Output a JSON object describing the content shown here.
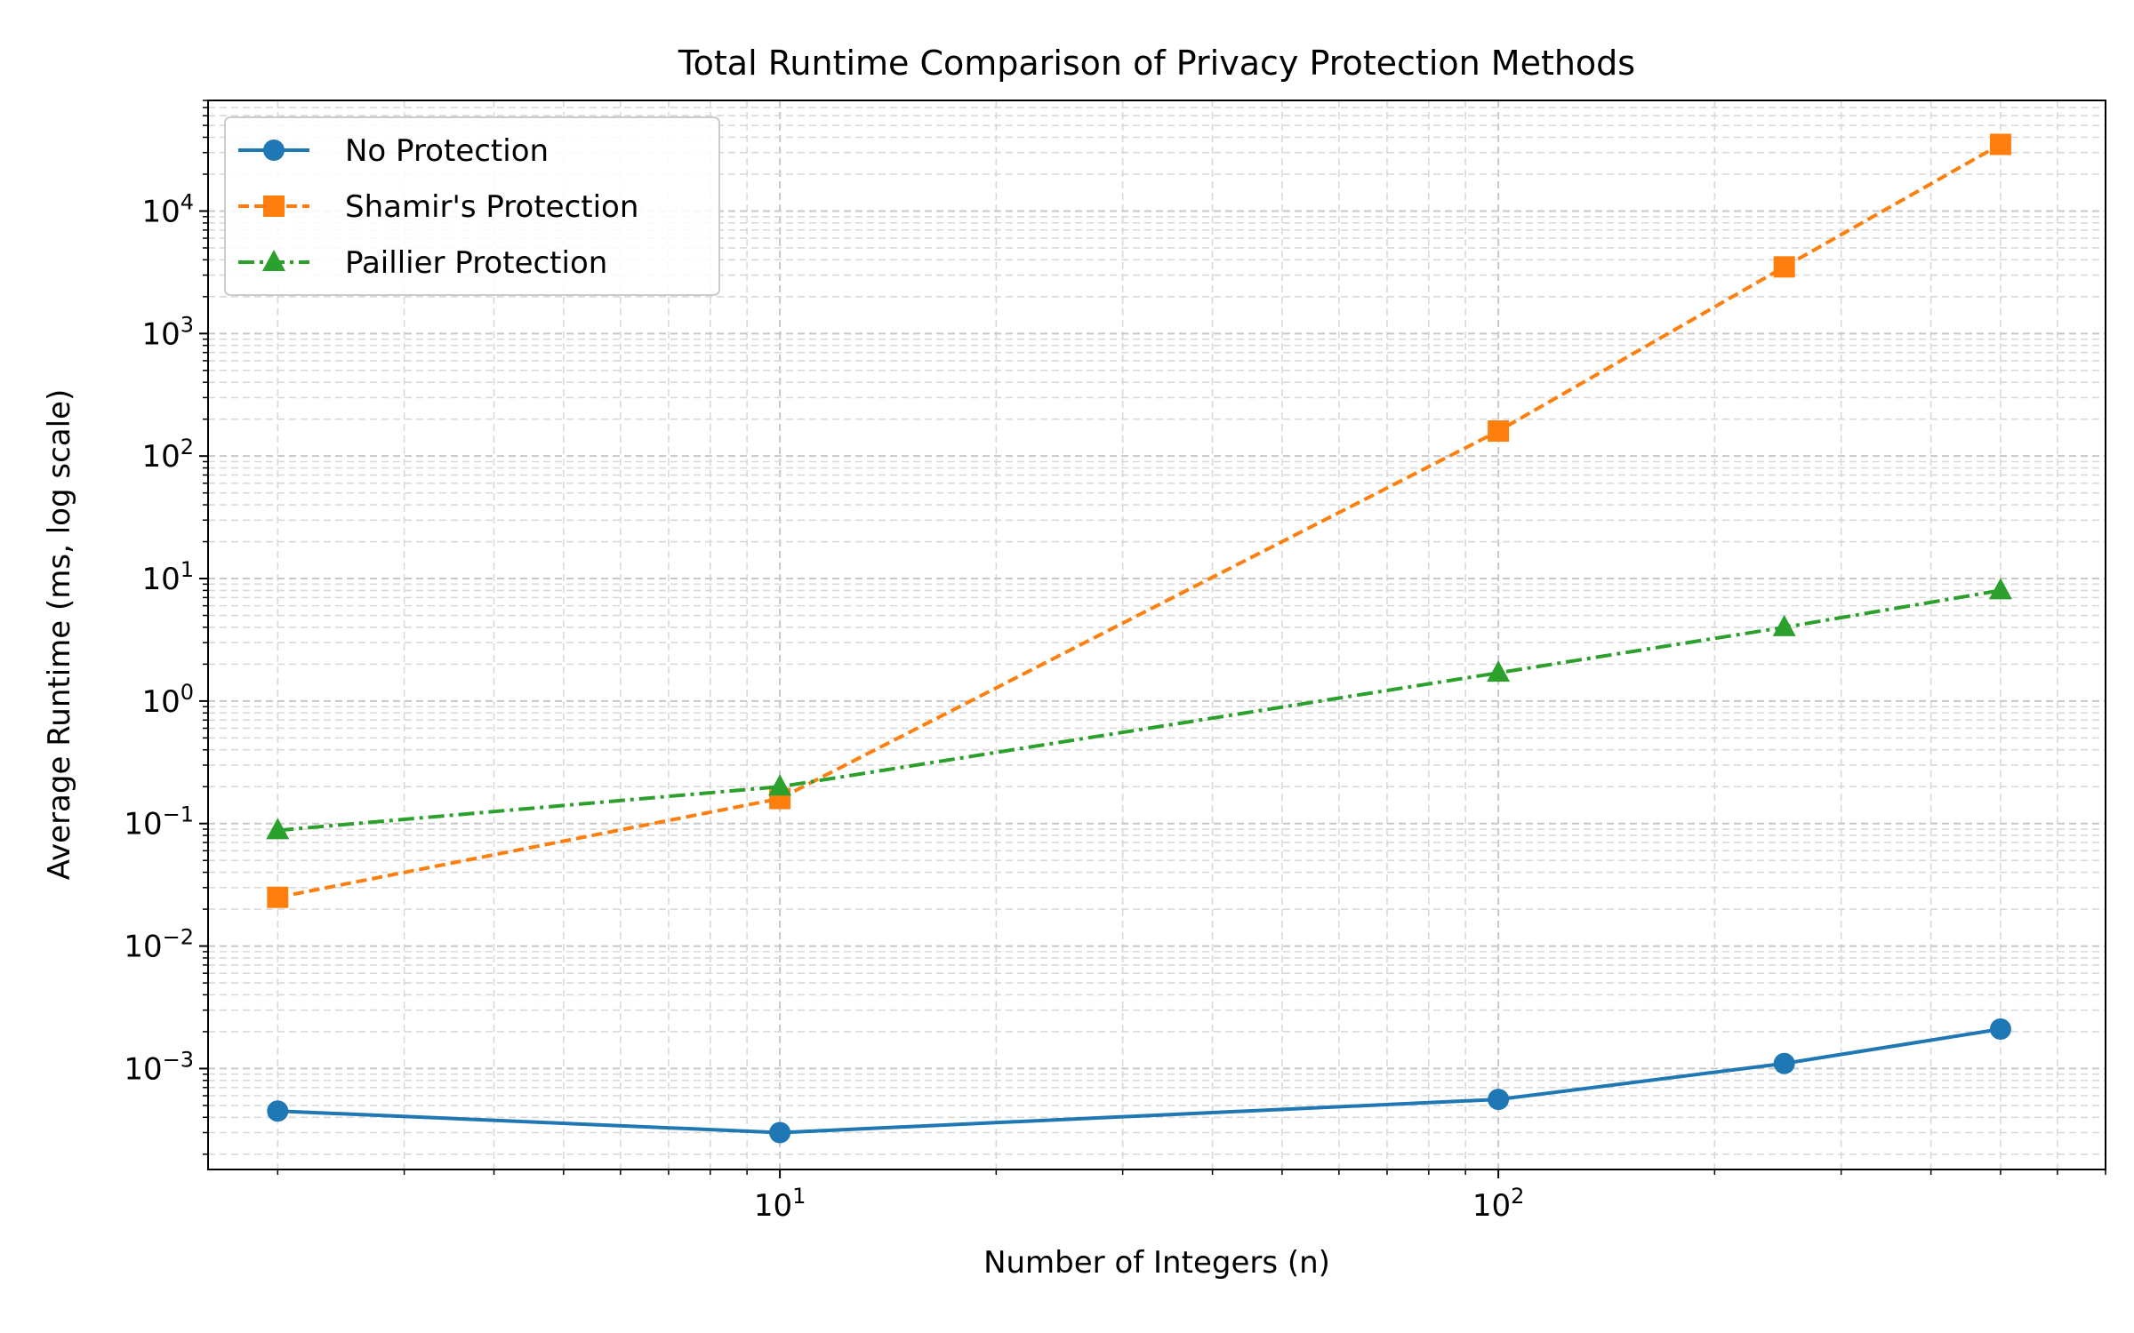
{
  "chart_data": {
    "type": "line",
    "title": "Total Runtime Comparison of Privacy Protection Methods",
    "xlabel": "Number of Integers (n)",
    "ylabel": "Average Runtime (ms, log scale)",
    "xscale": "log",
    "yscale": "log",
    "xlim": [
      1.6,
      700
    ],
    "ylim": [
      0.00015,
      80000
    ],
    "x": [
      2,
      10,
      100,
      250,
      500
    ],
    "x_ticks": [
      {
        "base": "10",
        "exp": "1",
        "value": 10
      },
      {
        "base": "10",
        "exp": "2",
        "value": 100
      }
    ],
    "y_ticks": [
      {
        "base": "10",
        "exp": "−3",
        "value": 0.001
      },
      {
        "base": "10",
        "exp": "−2",
        "value": 0.01
      },
      {
        "base": "10",
        "exp": "−1",
        "value": 0.1
      },
      {
        "base": "10",
        "exp": "0",
        "value": 1
      },
      {
        "base": "10",
        "exp": "1",
        "value": 10
      },
      {
        "base": "10",
        "exp": "2",
        "value": 100
      },
      {
        "base": "10",
        "exp": "3",
        "value": 1000
      },
      {
        "base": "10",
        "exp": "4",
        "value": 10000
      }
    ],
    "grid": true,
    "legend_position": "top-left",
    "series": [
      {
        "name": "No Protection",
        "values": [
          0.00045,
          0.0003,
          0.00056,
          0.0011,
          0.0021
        ],
        "color": "#1f77b4",
        "marker": "circle",
        "linestyle": "solid"
      },
      {
        "name": "Shamir's Protection",
        "values": [
          0.025,
          0.16,
          160,
          3500,
          35000
        ],
        "color": "#ff7f0e",
        "marker": "square",
        "linestyle": "dashed"
      },
      {
        "name": "Paillier Protection",
        "values": [
          0.088,
          0.2,
          1.7,
          4.0,
          8.0
        ],
        "color": "#2ca02c",
        "marker": "triangle",
        "linestyle": "dashdot"
      }
    ]
  }
}
